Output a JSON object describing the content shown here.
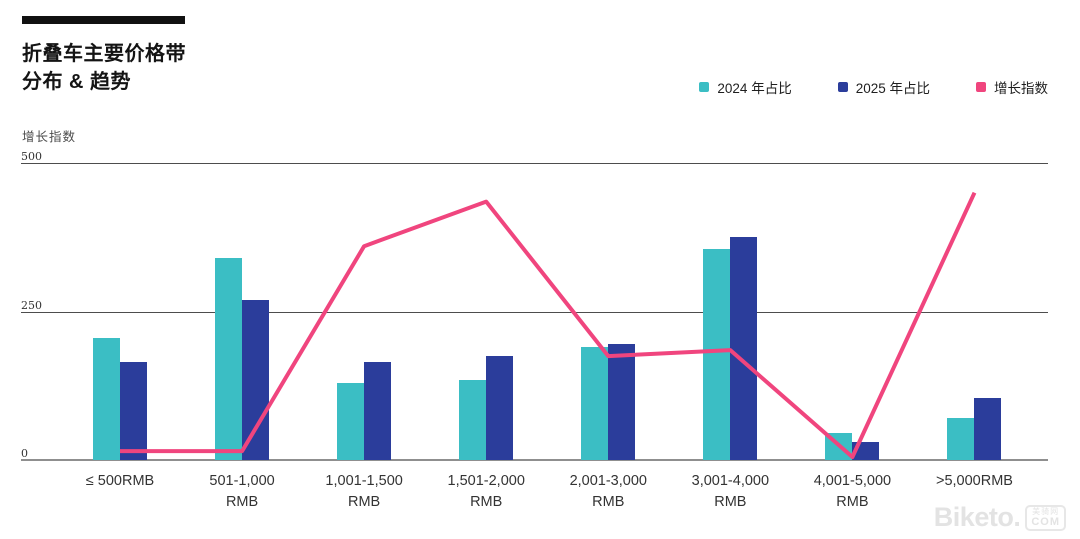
{
  "header": {
    "title_line1": "折叠车主要价格带",
    "title_line2": "分布 & 趋势"
  },
  "y_axis_title": "增长指数",
  "chart_data": {
    "type": "bar",
    "subtype": "grouped bars with overlaid line",
    "title": "折叠车主要价格带分布 & 趋势",
    "ylabel": "增长指数",
    "ylim": [
      0,
      500
    ],
    "y_ticks": [
      0,
      250,
      500
    ],
    "grid": "horizontal",
    "legend_position": "top-right",
    "categories": [
      "≤ 500RMB",
      "501-1,000\nRMB",
      "1,001-1,500\nRMB",
      "1,501-2,000\nRMB",
      "2,001-3,000\nRMB",
      "3,001-4,000\nRMB",
      "4,001-5,000\nRMB",
      ">5,000RMB"
    ],
    "series": [
      {
        "name": "2024 年占比",
        "type": "bar",
        "color": "#3BBEC4",
        "values": [
          205,
          340,
          130,
          135,
          190,
          355,
          45,
          70
        ]
      },
      {
        "name": "2025 年占比",
        "type": "bar",
        "color": "#2B3D9B",
        "values": [
          165,
          270,
          165,
          175,
          195,
          375,
          30,
          105
        ]
      },
      {
        "name": "增长指数",
        "type": "line",
        "color": "#F0457E",
        "values": [
          15,
          15,
          360,
          435,
          175,
          185,
          5,
          450
        ]
      }
    ]
  },
  "colors": {
    "accent_bar": "#111111",
    "gridline": "#4d4d4d",
    "axis_line": "#8f8f8f"
  },
  "watermark": {
    "brand": "Biketo.",
    "box_top": "美骑网",
    "box_bottom": "COM"
  }
}
